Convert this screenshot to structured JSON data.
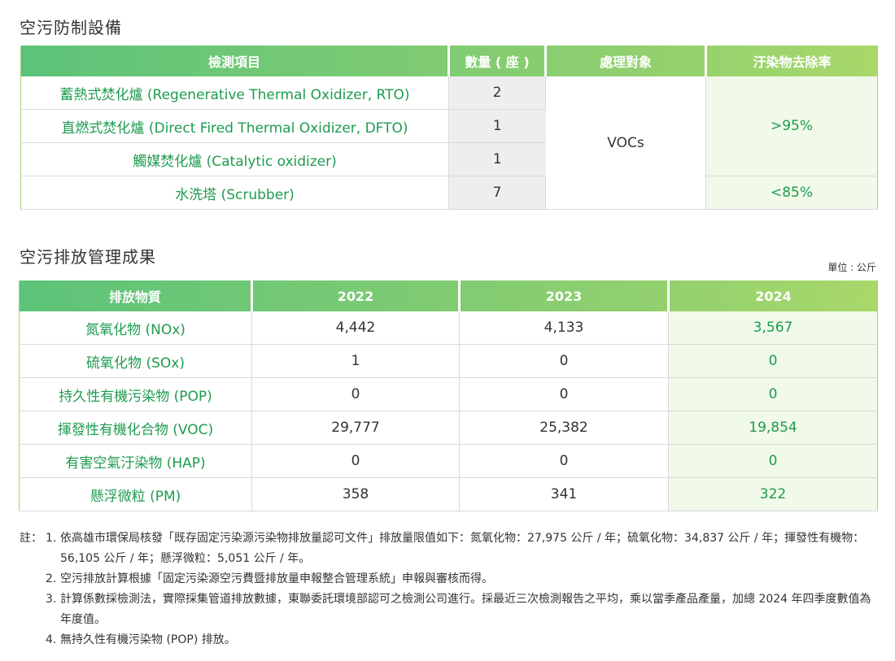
{
  "section1": {
    "title": "空污防制設備",
    "headers": [
      "檢測項目",
      "數量 ( 座 )",
      "處理對象",
      "汙染物去除率"
    ],
    "rows": [
      {
        "item": "蓄熱式焚化爐 (Regenerative Thermal Oxidizer, RTO)",
        "count": "2"
      },
      {
        "item": "直燃式焚化爐 (Direct Fired Thermal Oxidizer, DFTO)",
        "count": "1"
      },
      {
        "item": "觸媒焚化爐 (Catalytic oxidizer)",
        "count": "1"
      },
      {
        "item": "水洗塔 (Scrubber)",
        "count": "7"
      }
    ],
    "target": "VOCs",
    "rate_high": ">95%",
    "rate_low": "<85%"
  },
  "section2": {
    "title": "空污排放管理成果",
    "unit": "單位 : 公斤",
    "headers": [
      "排放物質",
      "2022",
      "2023",
      "2024"
    ],
    "rows": [
      {
        "name": "氮氧化物 (NOx)",
        "y2022": "4,442",
        "y2023": "4,133",
        "y2024": "3,567"
      },
      {
        "name": "硫氧化物 (SOx)",
        "y2022": "1",
        "y2023": "0",
        "y2024": "0"
      },
      {
        "name": "持久性有機污染物 (POP)",
        "y2022": "0",
        "y2023": "0",
        "y2024": "0"
      },
      {
        "name": "揮發性有機化合物 (VOC)",
        "y2022": "29,777",
        "y2023": "25,382",
        "y2024": "19,854"
      },
      {
        "name": "有害空氣汙染物 (HAP)",
        "y2022": "0",
        "y2023": "0",
        "y2024": "0"
      },
      {
        "name": "懸浮微粒 (PM)",
        "y2022": "358",
        "y2023": "341",
        "y2024": "322"
      }
    ]
  },
  "notes": {
    "prefix": "註：",
    "items": [
      {
        "num": "1.",
        "text": "依高雄市環保局核發「既存固定污染源污染物排放量認可文件」排放量限值如下：氮氧化物：27,975 公斤 / 年；硫氧化物：34,837 公斤 / 年；揮發性有機物：56,105 公斤 / 年；懸浮微粒：5,051 公斤 / 年。"
      },
      {
        "num": "2.",
        "text": "空污排放計算根據「固定污染源空污費暨排放量申報整合管理系統」申報與審核而得。"
      },
      {
        "num": "3.",
        "text": "計算係數採檢測法，實際採集管道排放數據，東聯委託環境部認可之檢測公司進行。採最近三次檢測報告之平均，乘以當季產品產量，加總 2024 年四季度數值為年度值。"
      },
      {
        "num": "4.",
        "text": "無持久性有機污染物 (POP) 排放。"
      }
    ]
  },
  "colors": {
    "header_gradient_start": "#5cc379",
    "header_gradient_end": "#a8d86a",
    "green_text": "#1e9b50",
    "grey_cell": "#eeeeee",
    "light_green_cell": "#f1f9e8"
  }
}
